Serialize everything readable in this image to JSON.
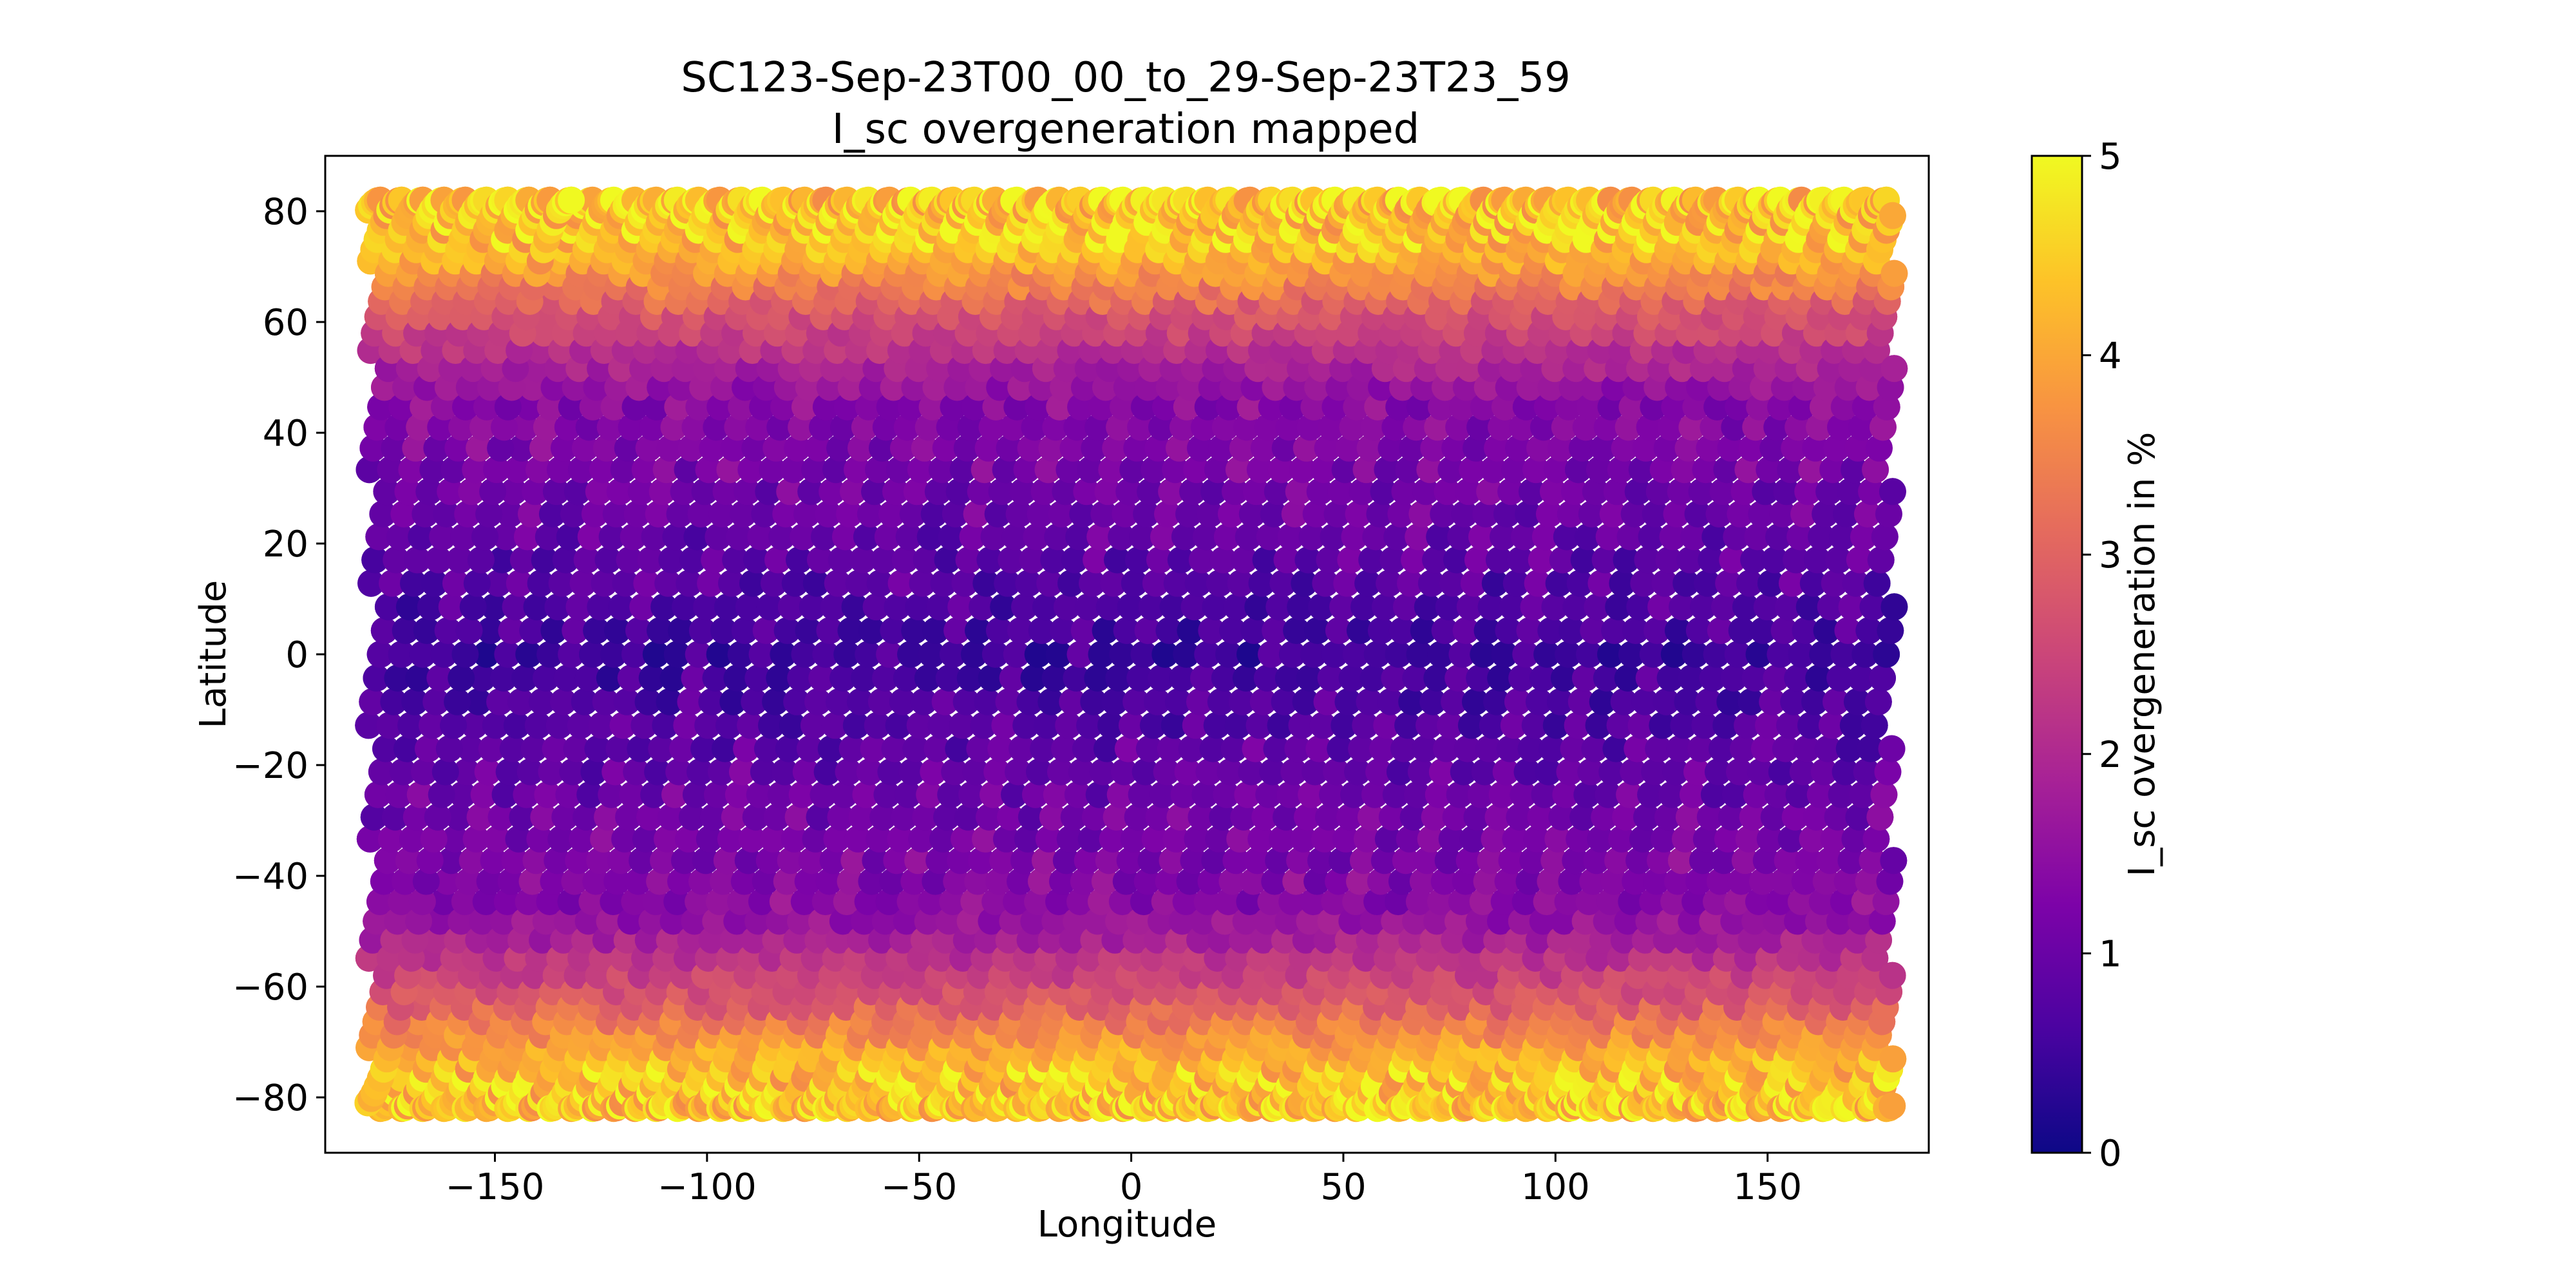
{
  "chart_data": {
    "type": "scatter",
    "title": [
      "SC123-Sep-23T00_00_to_29-Sep-23T23_59",
      "I_sc overgeneration mapped"
    ],
    "xlabel": "Longitude",
    "ylabel": "Latitude",
    "xlim": [
      -190,
      188
    ],
    "ylim": [
      -90,
      90
    ],
    "xticks": [
      -150,
      -100,
      -50,
      0,
      50,
      100,
      150
    ],
    "xtick_labels": [
      "−150",
      "−100",
      "−50",
      "0",
      "50",
      "100",
      "150"
    ],
    "yticks": [
      -80,
      -60,
      -40,
      -20,
      0,
      20,
      40,
      60,
      80
    ],
    "ytick_labels": [
      "−80",
      "−60",
      "−40",
      "−20",
      "0",
      "20",
      "40",
      "60",
      "80"
    ],
    "grid": false,
    "colormap": "plasma",
    "colorbar": {
      "label": "I_sc overgeneration in %",
      "range": [
        0,
        5
      ],
      "ticks": [
        0,
        1,
        2,
        3,
        4,
        5
      ],
      "tick_labels": [
        "0",
        "1",
        "2",
        "3",
        "4",
        "5"
      ]
    },
    "tracks": {
      "description_of_pattern": "Ground tracks running from about (lon_start, -82) to (lon_start + 50, 82), one track roughly every 5 degrees of longitude, wrapping at +/-180",
      "lat_range": [
        -82,
        82
      ],
      "lon_shift_per_pass": 50,
      "track_start_longitudes": [
        -232,
        -227,
        -222,
        -217,
        -212,
        -207,
        -202,
        -197,
        -192,
        -187,
        -182,
        -177,
        -172,
        -167,
        -162,
        -157,
        -152,
        -147,
        -142,
        -137,
        -132,
        -127,
        -122,
        -117,
        -112,
        -107,
        -102,
        -97,
        -92,
        -87,
        -82,
        -77,
        -72,
        -67,
        -62,
        -57,
        -52,
        -47,
        -42,
        -37,
        -32,
        -27,
        -22,
        -17,
        -12,
        -7,
        -2,
        3,
        8,
        13,
        18,
        23,
        28,
        33,
        38,
        43,
        48,
        53,
        58,
        63,
        68,
        73,
        78,
        83,
        88,
        93,
        98,
        103,
        108,
        113,
        118,
        123,
        128,
        133,
        138,
        143,
        148,
        153,
        158,
        163,
        168,
        173,
        178
      ]
    }
  }
}
